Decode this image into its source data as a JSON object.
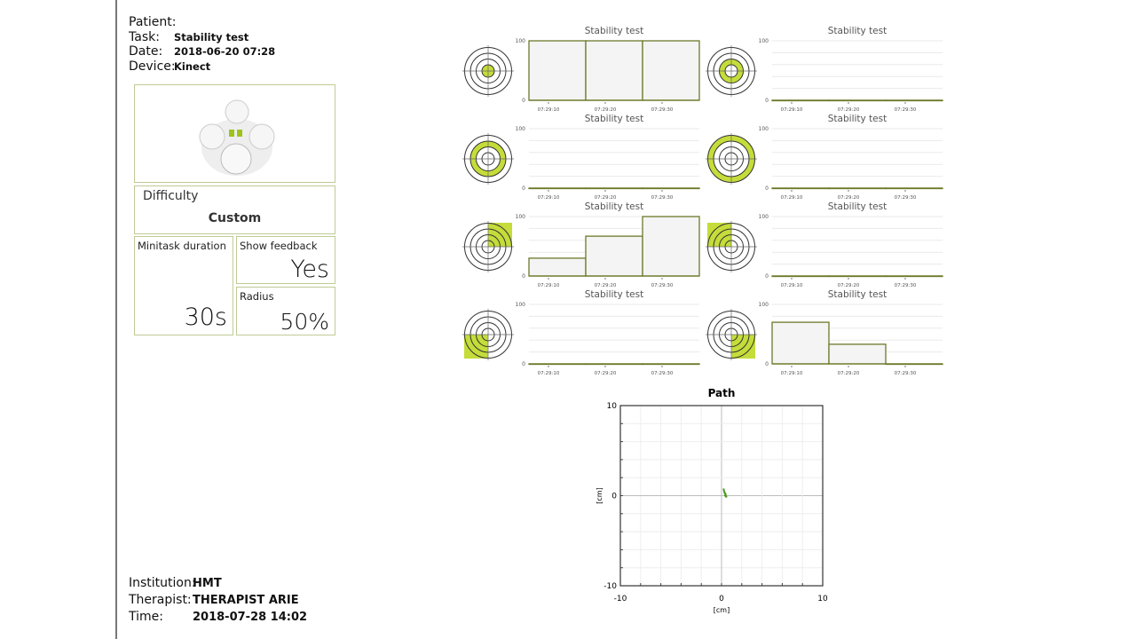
{
  "header": {
    "patient_label": "Patient:",
    "patient_value": "",
    "task_label": "Task:",
    "task_value": "Stability test",
    "date_label": "Date:",
    "date_value": "2018-06-20 07:28",
    "device_label": "Device:",
    "device_value": "Kinect"
  },
  "settings": {
    "difficulty_label": "Difficulty",
    "difficulty_value": "Custom",
    "minitask_label": "Minitask duration",
    "minitask_value": "30s",
    "feedback_label": "Show feedback",
    "feedback_value": "Yes",
    "radius_label": "Radius",
    "radius_value": "50%"
  },
  "footer": {
    "institution_label": "Institution:",
    "institution_value": "HMT",
    "therapist_label": "Therapist:",
    "therapist_value": "THERAPIST ARIE",
    "time_label": "Time:",
    "time_value": "2018-07-28 14:02"
  },
  "colors": {
    "accent": "#c5dc3a",
    "bar_stroke": "#6b7a2a",
    "bar_fill": "#f4f4f4",
    "path": "#4a9a1a",
    "box_border": "#bfca95"
  },
  "chart_data": [
    {
      "type": "bar",
      "title": "Stability test",
      "target_zone": "center",
      "categories": [
        "07:29:10",
        "07:29:20",
        "07:29:30"
      ],
      "values": [
        100,
        100,
        100
      ],
      "ylim": [
        0,
        100
      ],
      "yticks": [
        "0",
        "100"
      ]
    },
    {
      "type": "bar",
      "title": "Stability test",
      "target_zone": "ring-2",
      "categories": [
        "07:29:10",
        "07:29:20",
        "07:29:30"
      ],
      "values": [
        0,
        0,
        0
      ],
      "ylim": [
        0,
        100
      ],
      "yticks": [
        "0",
        "100"
      ]
    },
    {
      "type": "bar",
      "title": "Stability test",
      "target_zone": "ring-3",
      "categories": [
        "07:29:10",
        "07:29:20",
        "07:29:30"
      ],
      "values": [
        0,
        0,
        0
      ],
      "ylim": [
        0,
        100
      ],
      "yticks": [
        "0",
        "100"
      ]
    },
    {
      "type": "bar",
      "title": "Stability test",
      "target_zone": "ring-4",
      "categories": [
        "07:29:10",
        "07:29:20",
        "07:29:30"
      ],
      "values": [
        0,
        0,
        0
      ],
      "ylim": [
        0,
        100
      ],
      "yticks": [
        "0",
        "100"
      ]
    },
    {
      "type": "bar",
      "title": "Stability test",
      "target_zone": "top-right",
      "categories": [
        "07:29:10",
        "07:29:20",
        "07:29:30"
      ],
      "values": [
        30,
        67,
        100
      ],
      "ylim": [
        0,
        100
      ],
      "yticks": [
        "0",
        "100"
      ]
    },
    {
      "type": "bar",
      "title": "Stability test",
      "target_zone": "top-left",
      "categories": [
        "07:29:10",
        "07:29:20",
        "07:29:30"
      ],
      "values": [
        0,
        0,
        0
      ],
      "ylim": [
        0,
        100
      ],
      "yticks": [
        "0",
        "100"
      ]
    },
    {
      "type": "bar",
      "title": "Stability test",
      "target_zone": "bottom-left",
      "categories": [
        "07:29:10",
        "07:29:20",
        "07:29:30"
      ],
      "values": [
        0,
        0,
        0
      ],
      "ylim": [
        0,
        100
      ],
      "yticks": [
        "0",
        "100"
      ]
    },
    {
      "type": "bar",
      "title": "Stability test",
      "target_zone": "bottom-right",
      "categories": [
        "07:29:10",
        "07:29:20",
        "07:29:30"
      ],
      "values": [
        70,
        33,
        0
      ],
      "ylim": [
        0,
        100
      ],
      "yticks": [
        "0",
        "100"
      ]
    },
    {
      "type": "scatter",
      "title": "Path",
      "xlabel": "[cm]",
      "ylabel": "[cm]",
      "xlim": [
        -10,
        10
      ],
      "ylim": [
        -10,
        10
      ],
      "xticks": [
        "-10",
        "0",
        "10"
      ],
      "yticks": [
        "-10",
        "0",
        "10"
      ],
      "grid": true,
      "points": [
        [
          0.2,
          0.8
        ],
        [
          0.25,
          0.5
        ],
        [
          0.3,
          0.3
        ],
        [
          0.4,
          0.2
        ],
        [
          0.35,
          0.0
        ],
        [
          0.45,
          -0.1
        ],
        [
          0.5,
          -0.2
        ],
        [
          0.4,
          0.1
        ],
        [
          0.3,
          0.4
        ]
      ]
    }
  ]
}
